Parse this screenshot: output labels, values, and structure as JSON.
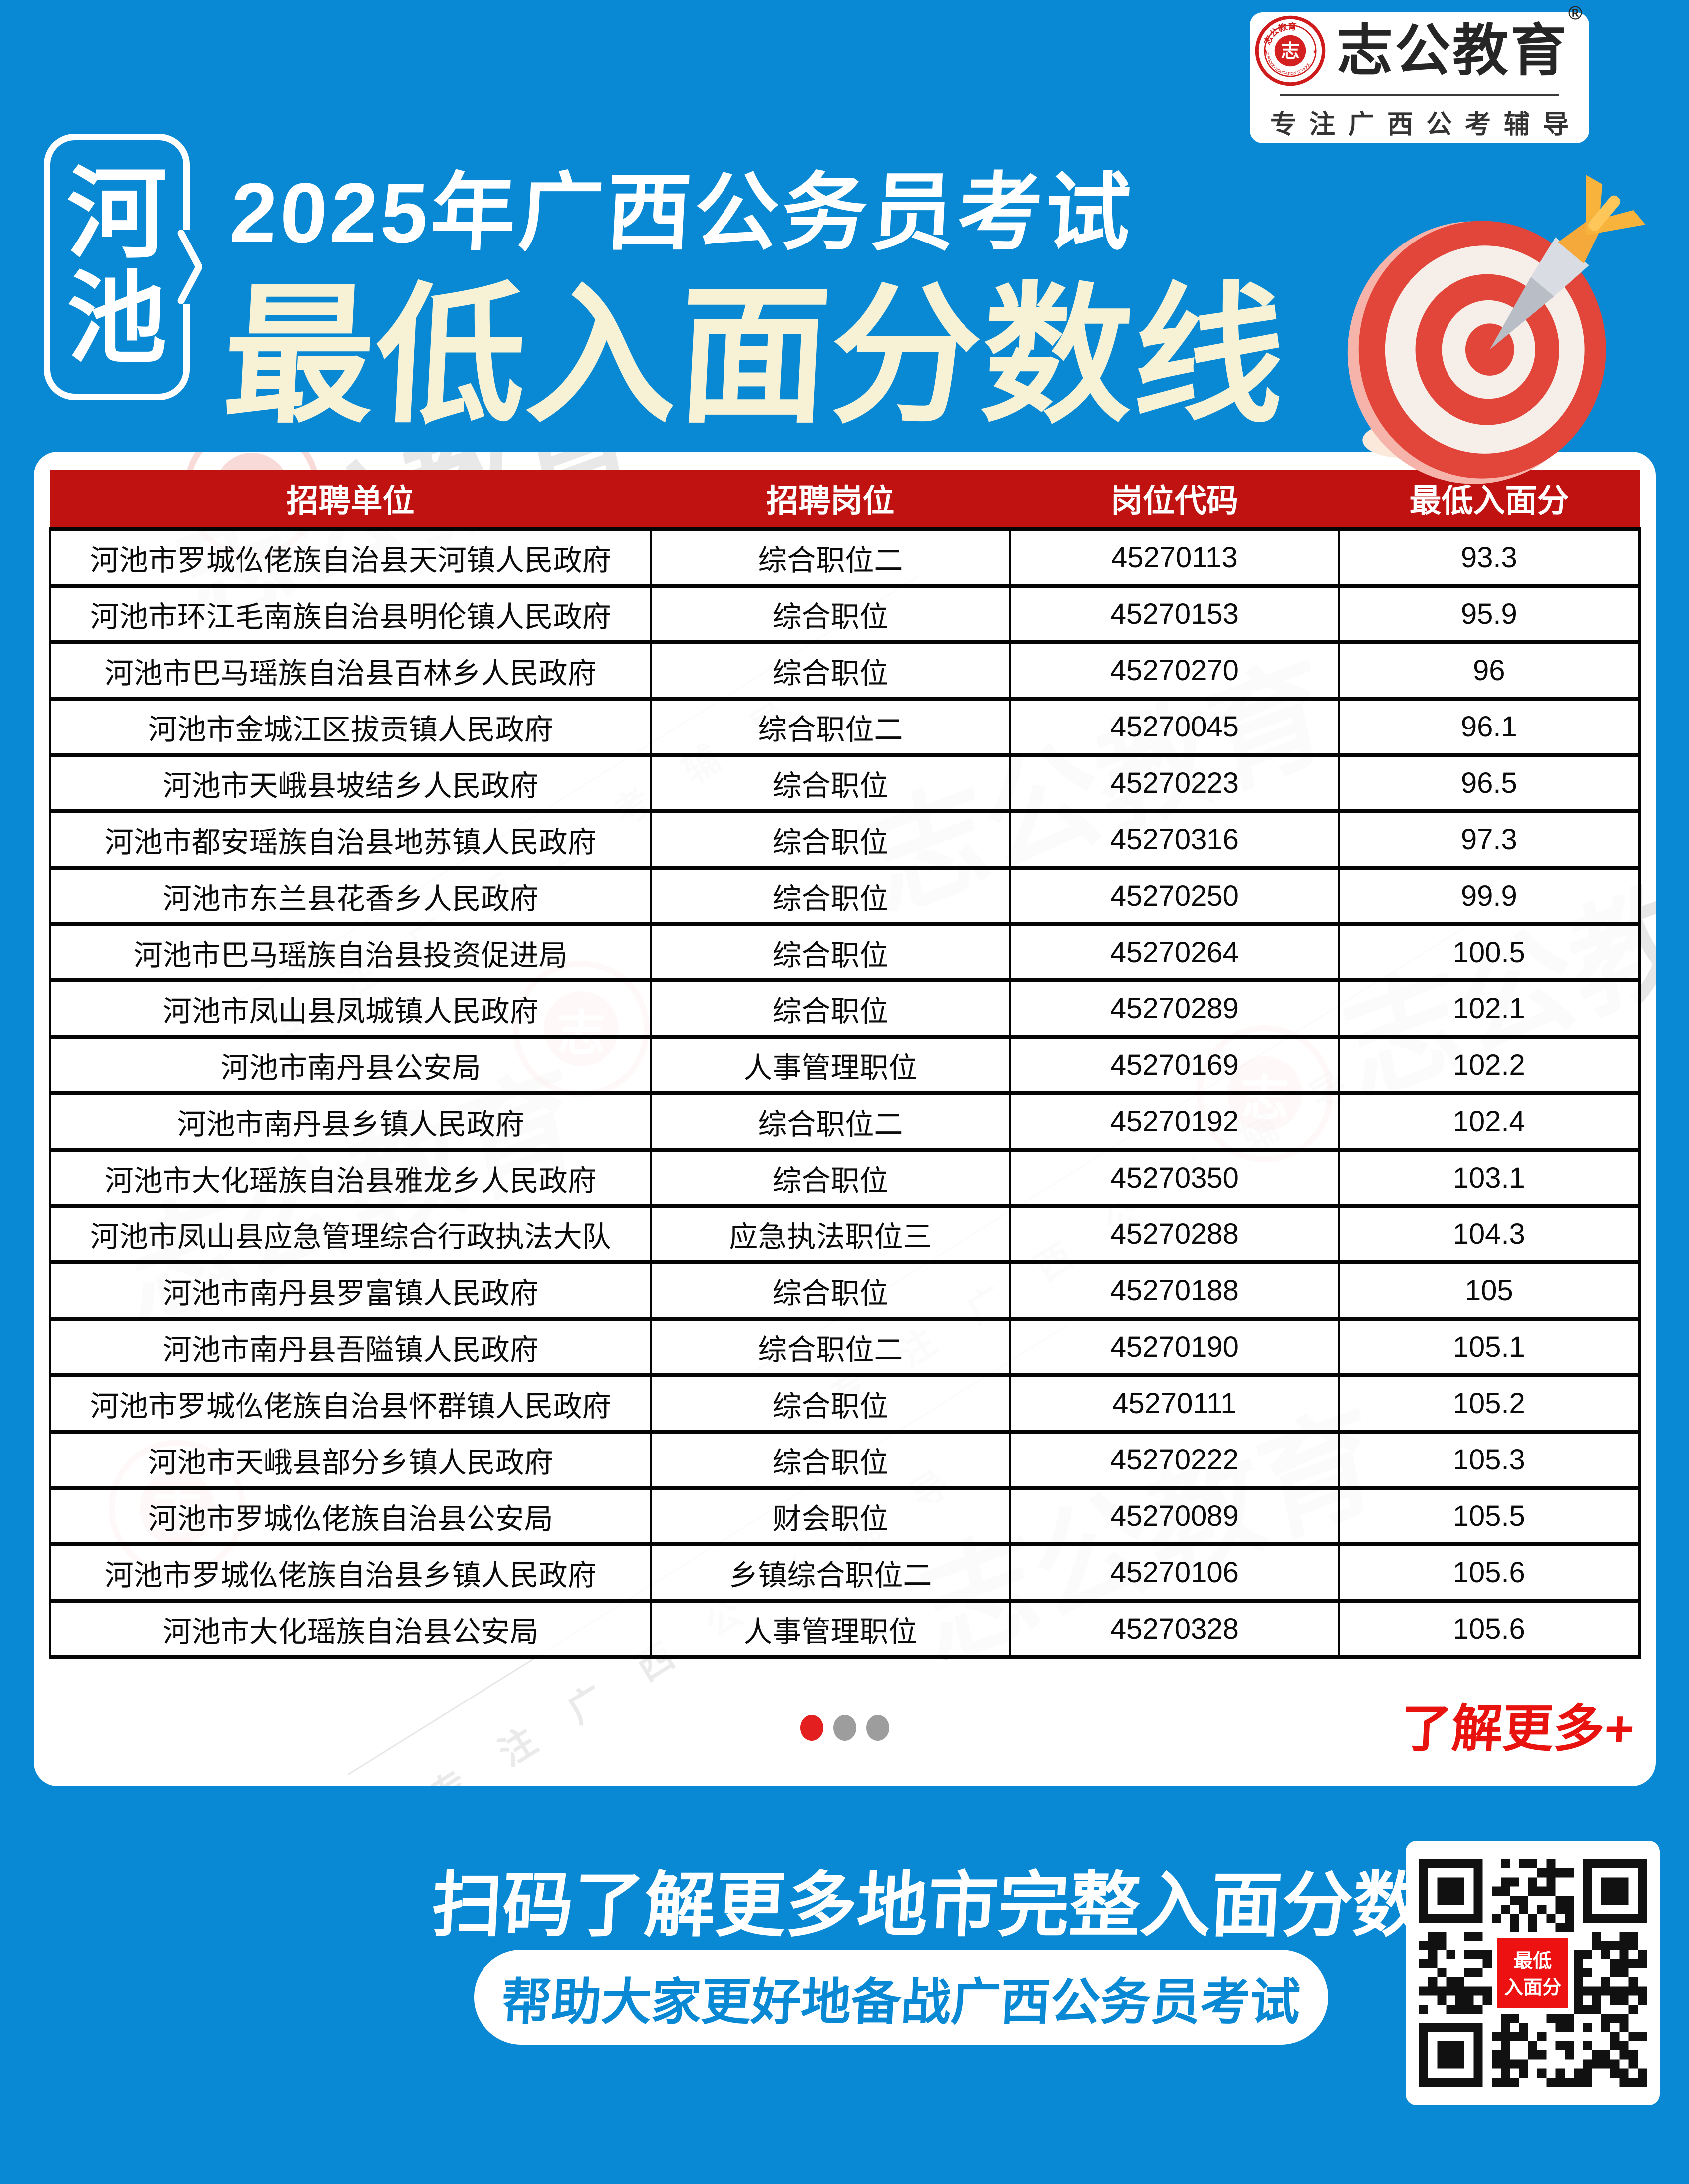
{
  "logo": {
    "brand": "志公教育",
    "reg_mark": "®",
    "tagline": "专注广西公考辅导",
    "seal_center_char": "志",
    "seal_top_text": "志公教育",
    "seal_bottom_text": "ZHIGONG EDUCATION SCHOOL"
  },
  "header": {
    "city": "河池",
    "city_char1": "河",
    "city_char2": "池",
    "title_line1": "2025年广西公务员考试",
    "title_line2": "最低入面分数线"
  },
  "table": {
    "columns": [
      "招聘单位",
      "招聘岗位",
      "岗位代码",
      "最低入面分"
    ],
    "rows": [
      {
        "unit": "河池市罗城仫佬族自治县天河镇人民政府",
        "position": "综合职位二",
        "code": "45270113",
        "score": "93.3"
      },
      {
        "unit": "河池市环江毛南族自治县明伦镇人民政府",
        "position": "综合职位",
        "code": "45270153",
        "score": "95.9"
      },
      {
        "unit": "河池市巴马瑶族自治县百林乡人民政府",
        "position": "综合职位",
        "code": "45270270",
        "score": "96"
      },
      {
        "unit": "河池市金城江区拔贡镇人民政府",
        "position": "综合职位二",
        "code": "45270045",
        "score": "96.1"
      },
      {
        "unit": "河池市天峨县坡结乡人民政府",
        "position": "综合职位",
        "code": "45270223",
        "score": "96.5"
      },
      {
        "unit": "河池市都安瑶族自治县地苏镇人民政府",
        "position": "综合职位",
        "code": "45270316",
        "score": "97.3"
      },
      {
        "unit": "河池市东兰县花香乡人民政府",
        "position": "综合职位",
        "code": "45270250",
        "score": "99.9"
      },
      {
        "unit": "河池市巴马瑶族自治县投资促进局",
        "position": "综合职位",
        "code": "45270264",
        "score": "100.5"
      },
      {
        "unit": "河池市凤山县凤城镇人民政府",
        "position": "综合职位",
        "code": "45270289",
        "score": "102.1"
      },
      {
        "unit": "河池市南丹县公安局",
        "position": "人事管理职位",
        "code": "45270169",
        "score": "102.2"
      },
      {
        "unit": "河池市南丹县乡镇人民政府",
        "position": "综合职位二",
        "code": "45270192",
        "score": "102.4"
      },
      {
        "unit": "河池市大化瑶族自治县雅龙乡人民政府",
        "position": "综合职位",
        "code": "45270350",
        "score": "103.1"
      },
      {
        "unit": "河池市凤山县应急管理综合行政执法大队",
        "position": "应急执法职位三",
        "code": "45270288",
        "score": "104.3"
      },
      {
        "unit": "河池市南丹县罗富镇人民政府",
        "position": "综合职位",
        "code": "45270188",
        "score": "105"
      },
      {
        "unit": "河池市南丹县吾隘镇人民政府",
        "position": "综合职位二",
        "code": "45270190",
        "score": "105.1"
      },
      {
        "unit": "河池市罗城仫佬族自治县怀群镇人民政府",
        "position": "综合职位",
        "code": "45270111",
        "score": "105.2"
      },
      {
        "unit": "河池市天峨县部分乡镇人民政府",
        "position": "综合职位",
        "code": "45270222",
        "score": "105.3"
      },
      {
        "unit": "河池市罗城仫佬族自治县公安局",
        "position": "财会职位",
        "code": "45270089",
        "score": "105.5"
      },
      {
        "unit": "河池市罗城仫佬族自治县乡镇人民政府",
        "position": "乡镇综合职位二",
        "code": "45270106",
        "score": "105.6"
      },
      {
        "unit": "河池市大化瑶族自治县公安局",
        "position": "人事管理职位",
        "code": "45270328",
        "score": "105.6"
      }
    ]
  },
  "more_link": {
    "label": "了解更多+"
  },
  "footer": {
    "headline": "扫码了解更多地市完整入面分数",
    "subline": "帮助大家更好地备战广西公务员考试",
    "qr_center_line1": "最低",
    "qr_center_line2": "入面分"
  },
  "watermark": {
    "brand": "志公教育",
    "tagline": "专注广西公考辅导",
    "seal_char": "志"
  },
  "colors": {
    "background_blue": "#0989d3",
    "title_cream": "#f7f2d5",
    "table_header_red": "#bf1211",
    "accent_red": "#e8120e",
    "dot_active_red": "#e41f1f",
    "dot_inactive_gray": "#9d9d9d",
    "seal_red": "#cf1b1b",
    "qr_chip_red": "#ee1111"
  }
}
